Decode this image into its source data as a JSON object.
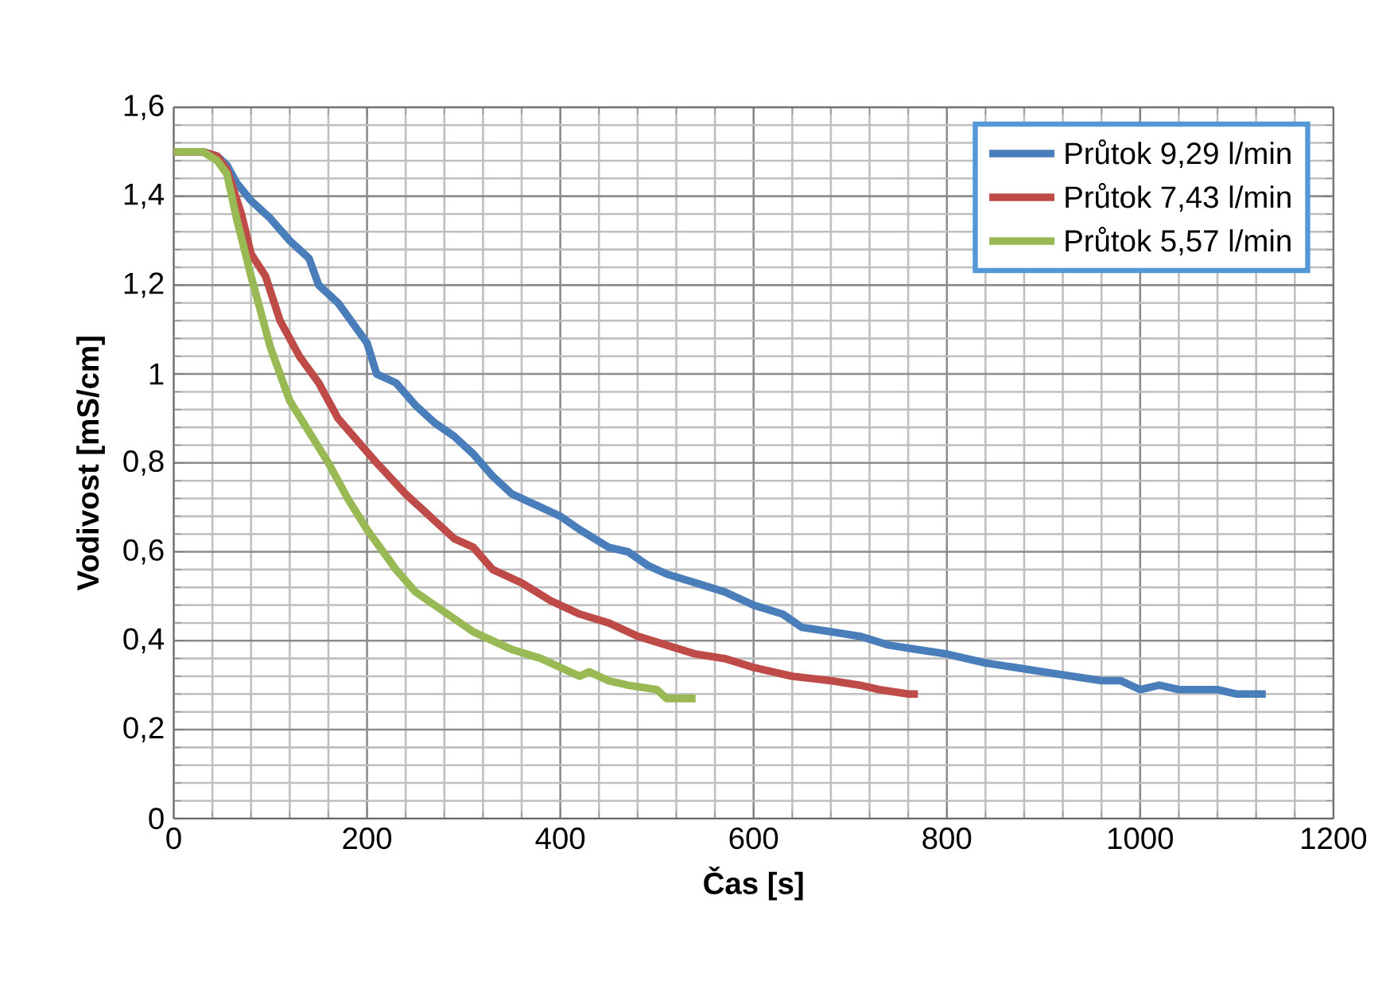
{
  "chart_data": {
    "type": "line",
    "xlabel": "Čas [s]",
    "ylabel": "Vodivost [mS/cm]",
    "xlim": [
      0,
      1200
    ],
    "xticks": [
      0,
      200,
      400,
      600,
      800,
      1000,
      1200
    ],
    "ylim": [
      0,
      1.6
    ],
    "yticks": [
      {
        "value": 0,
        "label": "0"
      },
      {
        "value": 0.2,
        "label": "0,2"
      },
      {
        "value": 0.4,
        "label": "0,4"
      },
      {
        "value": 0.6,
        "label": "0,6"
      },
      {
        "value": 0.8,
        "label": "0,8"
      },
      {
        "value": 1,
        "label": "1"
      },
      {
        "value": 1.2,
        "label": "1,2"
      },
      {
        "value": 1.4,
        "label": "1,4"
      },
      {
        "value": 1.6,
        "label": "1,6"
      }
    ],
    "grid": true,
    "legend": "top right",
    "marker": "none",
    "line_style": "solid",
    "series": [
      {
        "name": "Průtok 9,29 l/min",
        "color": "#4a7ebb",
        "x": [
          0,
          30,
          45,
          55,
          65,
          80,
          100,
          120,
          130,
          140,
          150,
          170,
          190,
          200,
          210,
          230,
          250,
          270,
          290,
          310,
          330,
          350,
          380,
          400,
          420,
          450,
          470,
          490,
          510,
          540,
          570,
          600,
          630,
          650,
          680,
          710,
          740,
          770,
          800,
          820,
          840,
          870,
          900,
          930,
          960,
          980,
          1000,
          1020,
          1040,
          1080,
          1100,
          1130
        ],
        "values": [
          1.5,
          1.5,
          1.49,
          1.47,
          1.43,
          1.39,
          1.35,
          1.3,
          1.28,
          1.26,
          1.2,
          1.16,
          1.1,
          1.07,
          1.0,
          0.98,
          0.93,
          0.89,
          0.86,
          0.82,
          0.77,
          0.73,
          0.7,
          0.68,
          0.65,
          0.61,
          0.6,
          0.57,
          0.55,
          0.53,
          0.51,
          0.48,
          0.46,
          0.43,
          0.42,
          0.41,
          0.39,
          0.38,
          0.37,
          0.36,
          0.35,
          0.34,
          0.33,
          0.32,
          0.31,
          0.31,
          0.29,
          0.3,
          0.29,
          0.29,
          0.28,
          0.28
        ]
      },
      {
        "name": "Průtok 7,43 l/min",
        "color": "#be4b48",
        "x": [
          0,
          30,
          45,
          55,
          70,
          80,
          95,
          110,
          130,
          150,
          170,
          190,
          210,
          240,
          260,
          290,
          310,
          330,
          360,
          390,
          420,
          450,
          480,
          510,
          540,
          570,
          600,
          640,
          680,
          710,
          730,
          760,
          770
        ],
        "values": [
          1.5,
          1.5,
          1.49,
          1.46,
          1.36,
          1.27,
          1.22,
          1.12,
          1.04,
          0.98,
          0.9,
          0.85,
          0.8,
          0.73,
          0.69,
          0.63,
          0.61,
          0.56,
          0.53,
          0.49,
          0.46,
          0.44,
          0.41,
          0.39,
          0.37,
          0.36,
          0.34,
          0.32,
          0.31,
          0.3,
          0.29,
          0.28,
          0.28
        ]
      },
      {
        "name": "Průtok 5,57 l/min",
        "color": "#98b954",
        "x": [
          0,
          30,
          45,
          55,
          65,
          80,
          100,
          120,
          140,
          160,
          180,
          200,
          230,
          250,
          270,
          290,
          310,
          330,
          350,
          380,
          400,
          420,
          430,
          450,
          470,
          500,
          510,
          540
        ],
        "values": [
          1.5,
          1.5,
          1.48,
          1.45,
          1.35,
          1.22,
          1.06,
          0.94,
          0.87,
          0.8,
          0.72,
          0.65,
          0.56,
          0.51,
          0.48,
          0.45,
          0.42,
          0.4,
          0.38,
          0.36,
          0.34,
          0.32,
          0.33,
          0.31,
          0.3,
          0.29,
          0.27,
          0.27
        ]
      }
    ]
  }
}
